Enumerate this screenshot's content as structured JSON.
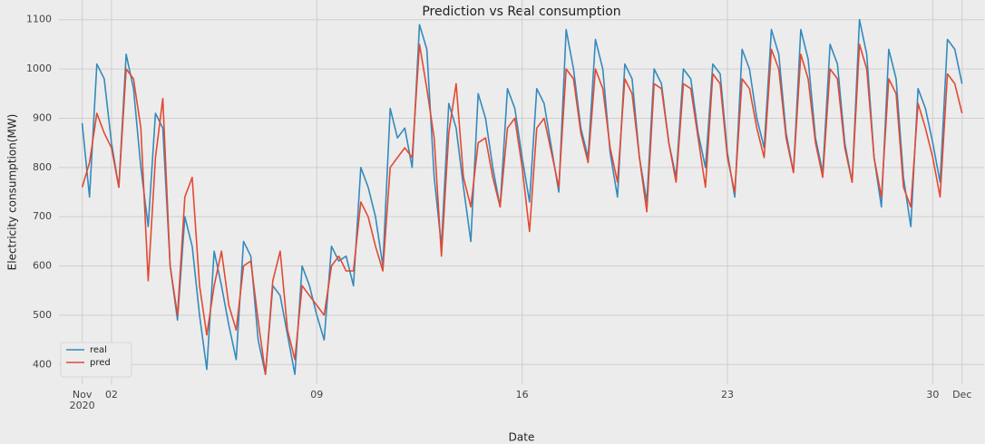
{
  "chart_data": {
    "type": "line",
    "title": "Prediction vs Real consumption",
    "x_label": "Date",
    "y_label": "Electricity consumption(MW)",
    "xlim": [
      "2020-10-31 05:00",
      "2020-12-01 18:00"
    ],
    "ylim": [
      360,
      1140
    ],
    "xticks": [
      {
        "value": "2020-11-01",
        "label": "Nov\n2020"
      },
      {
        "value": "2020-11-02",
        "label": "02"
      },
      {
        "value": "2020-11-09",
        "label": "09"
      },
      {
        "value": "2020-11-16",
        "label": "16"
      },
      {
        "value": "2020-11-23",
        "label": "23"
      },
      {
        "value": "2020-11-30",
        "label": "30"
      },
      {
        "value": "2020-12-01",
        "label": "Dec"
      }
    ],
    "yticks": [
      400,
      500,
      600,
      700,
      800,
      900,
      1000,
      1100
    ],
    "grid": true,
    "legend": "lower left",
    "x": [
      "2020-11-01 00:00",
      "2020-11-01 06:00",
      "2020-11-01 12:00",
      "2020-11-01 18:00",
      "2020-11-02 00:00",
      "2020-11-02 06:00",
      "2020-11-02 12:00",
      "2020-11-02 18:00",
      "2020-11-03 00:00",
      "2020-11-03 06:00",
      "2020-11-03 12:00",
      "2020-11-03 18:00",
      "2020-11-04 00:00",
      "2020-11-04 06:00",
      "2020-11-04 12:00",
      "2020-11-04 18:00",
      "2020-11-05 00:00",
      "2020-11-05 06:00",
      "2020-11-05 12:00",
      "2020-11-05 18:00",
      "2020-11-06 00:00",
      "2020-11-06 06:00",
      "2020-11-06 12:00",
      "2020-11-06 18:00",
      "2020-11-07 00:00",
      "2020-11-07 06:00",
      "2020-11-07 12:00",
      "2020-11-07 18:00",
      "2020-11-08 00:00",
      "2020-11-08 06:00",
      "2020-11-08 12:00",
      "2020-11-08 18:00",
      "2020-11-09 00:00",
      "2020-11-09 06:00",
      "2020-11-09 12:00",
      "2020-11-09 18:00",
      "2020-11-10 00:00",
      "2020-11-10 06:00",
      "2020-11-10 12:00",
      "2020-11-10 18:00",
      "2020-11-11 00:00",
      "2020-11-11 06:00",
      "2020-11-11 12:00",
      "2020-11-11 18:00",
      "2020-11-12 00:00",
      "2020-11-12 06:00",
      "2020-11-12 12:00",
      "2020-11-12 18:00",
      "2020-11-13 00:00",
      "2020-11-13 06:00",
      "2020-11-13 12:00",
      "2020-11-13 18:00",
      "2020-11-14 00:00",
      "2020-11-14 06:00",
      "2020-11-14 12:00",
      "2020-11-14 18:00",
      "2020-11-15 00:00",
      "2020-11-15 06:00",
      "2020-11-15 12:00",
      "2020-11-15 18:00",
      "2020-11-16 00:00",
      "2020-11-16 06:00",
      "2020-11-16 12:00",
      "2020-11-16 18:00",
      "2020-11-17 00:00",
      "2020-11-17 06:00",
      "2020-11-17 12:00",
      "2020-11-17 18:00",
      "2020-11-18 00:00",
      "2020-11-18 06:00",
      "2020-11-18 12:00",
      "2020-11-18 18:00",
      "2020-11-19 00:00",
      "2020-11-19 06:00",
      "2020-11-19 12:00",
      "2020-11-19 18:00",
      "2020-11-20 00:00",
      "2020-11-20 06:00",
      "2020-11-20 12:00",
      "2020-11-20 18:00",
      "2020-11-21 00:00",
      "2020-11-21 06:00",
      "2020-11-21 12:00",
      "2020-11-21 18:00",
      "2020-11-22 00:00",
      "2020-11-22 06:00",
      "2020-11-22 12:00",
      "2020-11-22 18:00",
      "2020-11-23 00:00",
      "2020-11-23 06:00",
      "2020-11-23 12:00",
      "2020-11-23 18:00",
      "2020-11-24 00:00",
      "2020-11-24 06:00",
      "2020-11-24 12:00",
      "2020-11-24 18:00",
      "2020-11-25 00:00",
      "2020-11-25 06:00",
      "2020-11-25 12:00",
      "2020-11-25 18:00",
      "2020-11-26 00:00",
      "2020-11-26 06:00",
      "2020-11-26 12:00",
      "2020-11-26 18:00",
      "2020-11-27 00:00",
      "2020-11-27 06:00",
      "2020-11-27 12:00",
      "2020-11-27 18:00",
      "2020-11-28 00:00",
      "2020-11-28 06:00",
      "2020-11-28 12:00",
      "2020-11-28 18:00",
      "2020-11-29 00:00",
      "2020-11-29 06:00",
      "2020-11-29 12:00",
      "2020-11-29 18:00",
      "2020-11-30 00:00",
      "2020-11-30 06:00",
      "2020-11-30 12:00",
      "2020-11-30 18:00",
      "2020-12-01 00:00"
    ],
    "series": [
      {
        "name": "real",
        "color": "#348abd",
        "values": [
          890,
          740,
          1010,
          980,
          850,
          760,
          1030,
          960,
          800,
          680,
          910,
          880,
          600,
          490,
          700,
          640,
          500,
          390,
          630,
          560,
          480,
          410,
          650,
          620,
          450,
          380,
          560,
          540,
          460,
          380,
          600,
          560,
          500,
          450,
          640,
          610,
          620,
          560,
          800,
          760,
          700,
          600,
          920,
          860,
          880,
          800,
          1090,
          1040,
          780,
          640,
          930,
          880,
          760,
          650,
          950,
          900,
          800,
          720,
          960,
          920,
          820,
          730,
          960,
          930,
          840,
          750,
          1080,
          1000,
          880,
          820,
          1060,
          1000,
          830,
          740,
          1010,
          980,
          820,
          730,
          1000,
          970,
          850,
          780,
          1000,
          980,
          870,
          800,
          1010,
          990,
          830,
          740,
          1040,
          1000,
          900,
          840,
          1080,
          1030,
          870,
          790,
          1080,
          1020,
          860,
          790,
          1050,
          1010,
          850,
          770,
          1100,
          1030,
          820,
          720,
          1040,
          980,
          780,
          680,
          960,
          920,
          850,
          770,
          1060,
          1040,
          970
        ]
      },
      {
        "name": "pred",
        "color": "#e24a33",
        "values": [
          760,
          810,
          910,
          870,
          840,
          760,
          1000,
          980,
          880,
          570,
          820,
          940,
          600,
          500,
          740,
          780,
          560,
          460,
          560,
          630,
          520,
          470,
          600,
          610,
          490,
          380,
          570,
          630,
          470,
          410,
          560,
          540,
          520,
          500,
          600,
          620,
          590,
          590,
          730,
          700,
          640,
          590,
          800,
          820,
          840,
          820,
          1050,
          960,
          860,
          620,
          870,
          970,
          780,
          720,
          850,
          860,
          780,
          720,
          880,
          900,
          800,
          670,
          880,
          900,
          830,
          760,
          1000,
          980,
          870,
          810,
          1000,
          960,
          840,
          770,
          980,
          950,
          820,
          710,
          970,
          960,
          850,
          770,
          970,
          960,
          860,
          760,
          990,
          970,
          820,
          750,
          980,
          960,
          880,
          820,
          1040,
          1000,
          860,
          790,
          1030,
          980,
          850,
          780,
          1000,
          980,
          840,
          770,
          1050,
          1000,
          820,
          740,
          980,
          950,
          760,
          720,
          930,
          880,
          820,
          740,
          990,
          970,
          910
        ]
      }
    ]
  }
}
